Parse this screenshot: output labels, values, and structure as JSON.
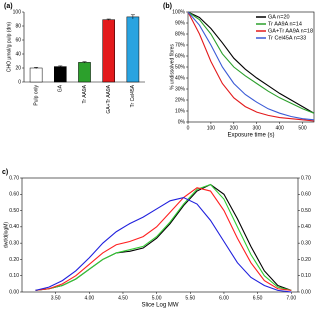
{
  "chart_data": [
    {
      "type": "bar",
      "label": "(a)",
      "ylabel": "CHO µmol/g pulp (dm)",
      "categories": [
        "Pulp only",
        "GA",
        "Tr AA9A",
        "GA+Tr AA9A",
        "Tr Cel45A"
      ],
      "values": [
        20,
        22,
        28,
        89,
        93
      ],
      "errors": [
        1,
        1,
        1,
        1,
        3
      ],
      "colors": [
        "#ffffff",
        "#000000",
        "#2ca02c",
        "#e31a1c",
        "#29a3e0"
      ],
      "ylim": [
        0,
        100
      ],
      "yticks": [
        0,
        20,
        40,
        60,
        80,
        100
      ]
    },
    {
      "type": "line",
      "label": "(b)",
      "xlabel": "Exposure time (s)",
      "ylabel": "% undissolved fibres",
      "x": [
        0,
        50,
        100,
        150,
        200,
        250,
        300,
        350,
        400,
        450,
        500,
        550
      ],
      "series": [
        {
          "name": "GA n=20",
          "color": "#000000",
          "values": [
            100,
            95,
            85,
            72,
            58,
            48,
            40,
            33,
            26,
            20,
            14,
            8
          ]
        },
        {
          "name": "Tr AA9A  n=14",
          "color": "#2ca02c",
          "values": [
            100,
            93,
            80,
            62,
            50,
            42,
            35,
            28,
            22,
            17,
            12,
            8
          ]
        },
        {
          "name": "GA+Tr AA9A n=18",
          "color": "#e31a1c",
          "values": [
            100,
            80,
            55,
            35,
            22,
            14,
            9,
            6,
            4,
            3,
            2,
            1
          ]
        },
        {
          "name": "Tr Cel45A n=33",
          "color": "#3b5bd6",
          "values": [
            100,
            88,
            70,
            50,
            35,
            25,
            18,
            12,
            8,
            5,
            3,
            2
          ]
        }
      ],
      "xlim": [
        0,
        550
      ],
      "xticks": [
        0,
        100,
        200,
        300,
        400,
        500
      ],
      "ylim": [
        0,
        100
      ],
      "yticks": [
        {
          "value": 0,
          "label": "0%"
        },
        {
          "value": 10,
          "label": "10%"
        },
        {
          "value": 20,
          "label": "20%"
        },
        {
          "value": 30,
          "label": "30%"
        },
        {
          "value": 40,
          "label": "40%"
        },
        {
          "value": 50,
          "label": "50%"
        },
        {
          "value": 60,
          "label": "60%"
        },
        {
          "value": 70,
          "label": "70%"
        },
        {
          "value": 80,
          "label": "80%"
        },
        {
          "value": 90,
          "label": "90%"
        },
        {
          "value": 100,
          "label": "100%"
        }
      ],
      "legend": "upper right"
    },
    {
      "type": "line",
      "label": "c)",
      "xlabel": "Slice Log MW",
      "ylabel": "dwt/d(logM)",
      "x": [
        3.2,
        3.4,
        3.6,
        3.8,
        4.0,
        4.2,
        4.4,
        4.6,
        4.8,
        5.0,
        5.2,
        5.4,
        5.6,
        5.8,
        6.0,
        6.2,
        6.4,
        6.6,
        6.8,
        7.0
      ],
      "series": [
        {
          "color": "#000000",
          "values": [
            0.01,
            0.02,
            0.04,
            0.08,
            0.14,
            0.2,
            0.24,
            0.25,
            0.27,
            0.33,
            0.42,
            0.53,
            0.62,
            0.66,
            0.6,
            0.45,
            0.28,
            0.13,
            0.04,
            0.01
          ]
        },
        {
          "color": "#33cc33",
          "values": [
            0.01,
            0.02,
            0.04,
            0.08,
            0.14,
            0.2,
            0.24,
            0.26,
            0.28,
            0.34,
            0.43,
            0.54,
            0.63,
            0.66,
            0.57,
            0.4,
            0.23,
            0.1,
            0.03,
            0.01
          ]
        },
        {
          "color": "#ff2020",
          "values": [
            0.01,
            0.02,
            0.05,
            0.1,
            0.17,
            0.24,
            0.29,
            0.31,
            0.34,
            0.4,
            0.49,
            0.58,
            0.64,
            0.62,
            0.5,
            0.33,
            0.18,
            0.07,
            0.02,
            0.01
          ]
        },
        {
          "color": "#2020dd",
          "values": [
            0.01,
            0.03,
            0.07,
            0.13,
            0.21,
            0.3,
            0.37,
            0.42,
            0.46,
            0.51,
            0.56,
            0.58,
            0.54,
            0.44,
            0.31,
            0.18,
            0.09,
            0.04,
            0.01,
            0.0
          ]
        }
      ],
      "xlim": [
        3.0,
        7.1
      ],
      "xticks": [
        {
          "value": 3.5,
          "label": "3.50"
        },
        {
          "value": 4,
          "label": "4.00"
        },
        {
          "value": 4.5,
          "label": "4.50"
        },
        {
          "value": 5,
          "label": "5.00"
        },
        {
          "value": 5.5,
          "label": "5.50"
        },
        {
          "value": 6,
          "label": "6.00"
        },
        {
          "value": 6.5,
          "label": "6.50"
        },
        {
          "value": 7,
          "label": "7.00"
        }
      ],
      "ylim": [
        0,
        0.7
      ],
      "yticks": [
        {
          "value": 0,
          "label": "0.00"
        },
        {
          "value": 0.1,
          "label": "0.10"
        },
        {
          "value": 0.2,
          "label": "0.20"
        },
        {
          "value": 0.3,
          "label": "0.30"
        },
        {
          "value": 0.4,
          "label": "0.40"
        },
        {
          "value": 0.5,
          "label": "0.50"
        },
        {
          "value": 0.6,
          "label": "0.60"
        },
        {
          "value": 0.7,
          "label": "0.70"
        }
      ],
      "y2lim": [
        0,
        0.7
      ],
      "y2ticks": [
        {
          "value": 0,
          "label": "0.00"
        },
        {
          "value": 0.1,
          "label": "0.10"
        },
        {
          "value": 0.2,
          "label": "0.20"
        },
        {
          "value": 0.3,
          "label": "0.30"
        },
        {
          "value": 0.4,
          "label": "0.40"
        },
        {
          "value": 0.5,
          "label": "0.50"
        },
        {
          "value": 0.6,
          "label": "0.60"
        },
        {
          "value": 0.7,
          "label": "0.70"
        }
      ]
    }
  ]
}
